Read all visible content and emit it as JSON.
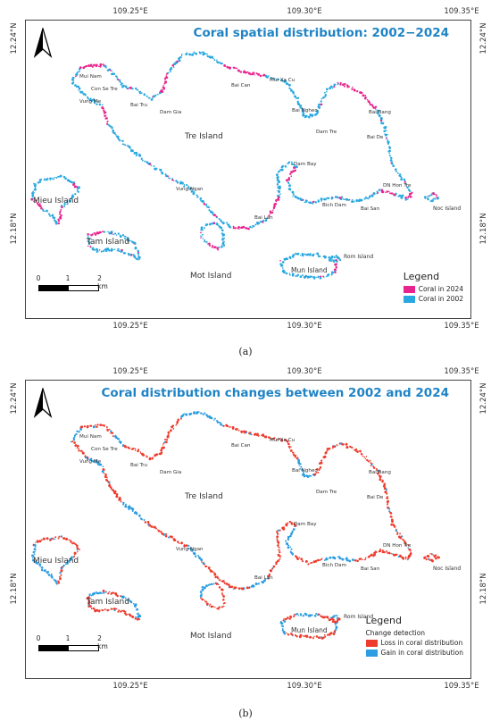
{
  "panels": [
    {
      "title": "Coral spatial distribution: 2002−2024",
      "caption": "(a)",
      "legend_title": "Legend",
      "legend_subtitle": "",
      "legend_items": [
        {
          "label": "Coral in 2024",
          "color": "#e8258e"
        },
        {
          "label": "Coral in 2002",
          "color": "#29a8e0"
        }
      ],
      "primary_color": "#29a8e0",
      "secondary_color": "#e8258e",
      "secondary_ratio": 0.18
    },
    {
      "title": "Coral distribution changes between 2002 and 2024",
      "caption": "(b)",
      "legend_title": "Legend",
      "legend_subtitle": "Change detection",
      "legend_items": [
        {
          "label": "Loss in coral distribution",
          "color": "#ef3b2c"
        },
        {
          "label": "Gain in coral distribution",
          "color": "#2b9de0"
        }
      ],
      "primary_color": "#ef3b2c",
      "secondary_color": "#2b9de0",
      "secondary_ratio": 0.35
    }
  ],
  "lon_ticks": [
    "109.25°E",
    "109.30°E",
    "109.35°E"
  ],
  "lat_ticks": [
    "12.24°N",
    "12.18°N"
  ],
  "scale_labels": [
    "0",
    "1",
    "2 km"
  ],
  "north_arrow_icon": "north-arrow-icon",
  "islands": [
    {
      "name": "Tre Island",
      "size": "large"
    },
    {
      "name": "Mieu Island",
      "size": "large"
    },
    {
      "name": "Tam Island",
      "size": "large"
    },
    {
      "name": "Mot Island",
      "size": "large"
    },
    {
      "name": "Mun Island",
      "size": "medium"
    },
    {
      "name": "Noc Island",
      "size": "small"
    },
    {
      "name": "Rom Island",
      "size": "small"
    }
  ],
  "places": [
    "Mui Nam",
    "Con Se Tre",
    "Vung Me",
    "Bai Tru",
    "Dam Gia",
    "Bai Can",
    "Mui Xa Cu",
    "Bai Ngheo",
    "Dam Tre",
    "Bai Bang",
    "Bai De",
    "Dam Bay",
    "Vung Ngan",
    "DN Hon Tre",
    "Bich Dam",
    "Bai San",
    "Bai Lan"
  ]
}
